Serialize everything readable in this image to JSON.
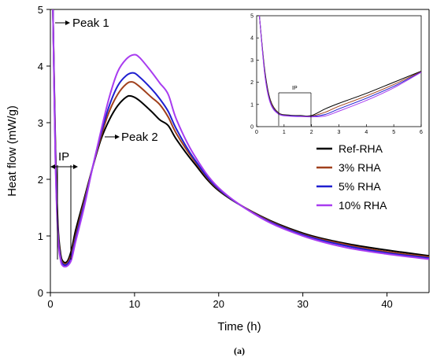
{
  "chart_data": [
    {
      "type": "line",
      "xlabel": "Time (h)",
      "ylabel": "Heat flow (mW/g)",
      "xlim": [
        0,
        45
      ],
      "ylim": [
        0,
        5
      ],
      "x_ticks": [
        "0",
        "10",
        "20",
        "30",
        "40"
      ],
      "y_ticks": [
        "0",
        "1",
        "2",
        "3",
        "4",
        "5"
      ],
      "legend_position": "right",
      "grid": false,
      "annotations": [
        "Peak 1",
        "Peak 2",
        "IP"
      ],
      "series": [
        {
          "name": "Ref-RHA",
          "color": "#000000",
          "x": [
            0.3,
            0.6,
            0.9,
            1.2,
            1.5,
            2.0,
            2.5,
            3.0,
            4.0,
            5.0,
            6.0,
            7.0,
            8.0,
            9.0,
            9.6,
            10.5,
            12.0,
            13.0,
            14.0,
            15.0,
            17.0,
            20.0,
            25.0,
            30.0,
            35.0,
            40.0,
            45.0
          ],
          "y": [
            5.0,
            2.6,
            1.2,
            0.7,
            0.55,
            0.55,
            0.75,
            1.1,
            1.65,
            2.2,
            2.7,
            3.05,
            3.3,
            3.45,
            3.47,
            3.4,
            3.2,
            3.05,
            2.95,
            2.7,
            2.3,
            1.8,
            1.35,
            1.05,
            0.87,
            0.75,
            0.65
          ]
        },
        {
          "name": "3% RHA",
          "color": "#a0401c",
          "x": [
            0.3,
            0.6,
            0.9,
            1.2,
            1.5,
            2.0,
            2.5,
            3.0,
            4.0,
            5.0,
            6.0,
            7.0,
            8.0,
            9.0,
            9.7,
            10.5,
            12.0,
            13.0,
            14.0,
            15.0,
            17.0,
            20.0,
            25.0,
            30.0,
            35.0,
            40.0,
            45.0
          ],
          "y": [
            5.0,
            2.5,
            1.1,
            0.65,
            0.52,
            0.52,
            0.68,
            1.0,
            1.6,
            2.2,
            2.75,
            3.2,
            3.5,
            3.68,
            3.72,
            3.65,
            3.45,
            3.32,
            3.1,
            2.8,
            2.35,
            1.82,
            1.34,
            1.03,
            0.85,
            0.72,
            0.63
          ]
        },
        {
          "name": "5% RHA",
          "color": "#1f1fd0",
          "x": [
            0.3,
            0.6,
            0.9,
            1.2,
            1.5,
            2.0,
            2.5,
            3.0,
            4.0,
            5.0,
            6.0,
            7.0,
            8.0,
            9.0,
            9.8,
            10.5,
            12.0,
            13.0,
            14.0,
            15.0,
            17.0,
            20.0,
            25.0,
            30.0,
            35.0,
            40.0,
            45.0
          ],
          "y": [
            5.0,
            2.4,
            1.05,
            0.62,
            0.5,
            0.5,
            0.63,
            0.95,
            1.55,
            2.2,
            2.8,
            3.3,
            3.65,
            3.83,
            3.88,
            3.82,
            3.6,
            3.42,
            3.2,
            2.88,
            2.38,
            1.83,
            1.33,
            1.02,
            0.83,
            0.7,
            0.61
          ]
        },
        {
          "name": "10% RHA",
          "color": "#a83cf0",
          "x": [
            0.3,
            0.6,
            0.9,
            1.2,
            1.5,
            2.0,
            2.5,
            3.0,
            4.0,
            5.0,
            6.0,
            7.0,
            8.0,
            9.0,
            9.9,
            10.6,
            12.0,
            13.0,
            14.0,
            15.0,
            17.0,
            20.0,
            25.0,
            30.0,
            35.0,
            40.0,
            45.0
          ],
          "y": [
            5.0,
            2.3,
            1.0,
            0.58,
            0.47,
            0.47,
            0.58,
            0.9,
            1.5,
            2.2,
            2.85,
            3.45,
            3.9,
            4.12,
            4.2,
            4.15,
            3.9,
            3.7,
            3.5,
            3.05,
            2.45,
            1.85,
            1.32,
            1.0,
            0.8,
            0.68,
            0.59
          ]
        }
      ]
    },
    {
      "type": "line",
      "xlim": [
        0,
        6
      ],
      "ylim": [
        0,
        5
      ],
      "x_ticks": [
        "0",
        "1",
        "2",
        "3",
        "4",
        "5",
        "6"
      ],
      "y_ticks": [
        "0",
        "1",
        "2",
        "3",
        "4",
        "5"
      ],
      "annotations": [
        "IP"
      ],
      "series": [
        {
          "color": "#000000",
          "x": [
            0.1,
            0.3,
            0.5,
            0.8,
            1.2,
            1.6,
            2.0,
            2.5,
            3.0,
            4.0,
            5.0,
            6.0
          ],
          "y": [
            5.0,
            2.5,
            1.2,
            0.62,
            0.52,
            0.5,
            0.5,
            0.8,
            1.05,
            1.5,
            2.0,
            2.5
          ]
        },
        {
          "color": "#a0401c",
          "x": [
            0.1,
            0.3,
            0.5,
            0.8,
            1.2,
            1.6,
            2.0,
            2.5,
            3.0,
            4.0,
            5.0,
            6.0
          ],
          "y": [
            5.0,
            2.4,
            1.15,
            0.6,
            0.5,
            0.48,
            0.48,
            0.65,
            0.92,
            1.38,
            1.9,
            2.48
          ]
        },
        {
          "color": "#1f1fd0",
          "x": [
            0.1,
            0.3,
            0.5,
            0.8,
            1.2,
            1.6,
            2.0,
            2.5,
            3.0,
            4.0,
            5.0,
            6.0
          ],
          "y": [
            5.0,
            2.35,
            1.1,
            0.58,
            0.49,
            0.47,
            0.46,
            0.55,
            0.8,
            1.28,
            1.82,
            2.46
          ]
        },
        {
          "color": "#a83cf0",
          "x": [
            0.1,
            0.3,
            0.5,
            0.8,
            1.2,
            1.6,
            2.0,
            2.5,
            3.0,
            4.0,
            5.0,
            6.0
          ],
          "y": [
            5.0,
            2.3,
            1.05,
            0.56,
            0.47,
            0.45,
            0.44,
            0.48,
            0.7,
            1.18,
            1.75,
            2.45
          ]
        }
      ]
    }
  ],
  "caption": "(a)"
}
